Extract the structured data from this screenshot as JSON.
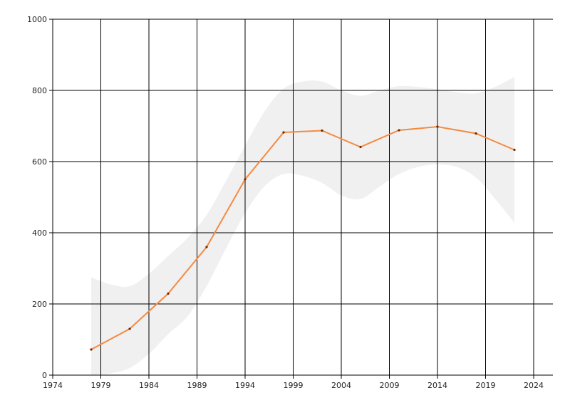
{
  "chart_data": {
    "type": "line",
    "title": "",
    "xlabel": "",
    "ylabel": "",
    "xlim": [
      1974,
      2026
    ],
    "ylim": [
      0,
      1000
    ],
    "x_ticks": [
      1974,
      1979,
      1984,
      1989,
      1994,
      1999,
      2004,
      2009,
      2014,
      2019,
      2024
    ],
    "y_ticks": [
      0,
      200,
      400,
      600,
      800,
      1000
    ],
    "grid": true,
    "legend": "none",
    "series": [
      {
        "color": "#f58a42",
        "x": [
          1978,
          1982,
          1986,
          1990,
          1994,
          1998,
          2002,
          2006,
          2010,
          2014,
          2018,
          2022
        ],
        "values": [
          72,
          130,
          229,
          360,
          550,
          682,
          687,
          641,
          688,
          698,
          679,
          633
        ],
        "band": {
          "color": "#f0f0f0",
          "x": [
            1978,
            1980,
            1982,
            1984,
            1986,
            1988,
            1990,
            1992,
            1994,
            1996,
            1998,
            2000,
            2002,
            2004,
            2006,
            2008,
            2010,
            2012,
            2014,
            2016,
            2018,
            2020,
            2022
          ],
          "upper": [
            275,
            255,
            250,
            285,
            335,
            385,
            450,
            545,
            645,
            740,
            805,
            825,
            825,
            800,
            785,
            800,
            812,
            810,
            803,
            795,
            792,
            810,
            838
          ],
          "lower": [
            0,
            5,
            20,
            60,
            115,
            165,
            250,
            355,
            455,
            530,
            565,
            560,
            540,
            505,
            495,
            530,
            565,
            585,
            592,
            585,
            555,
            495,
            428
          ]
        }
      }
    ]
  }
}
